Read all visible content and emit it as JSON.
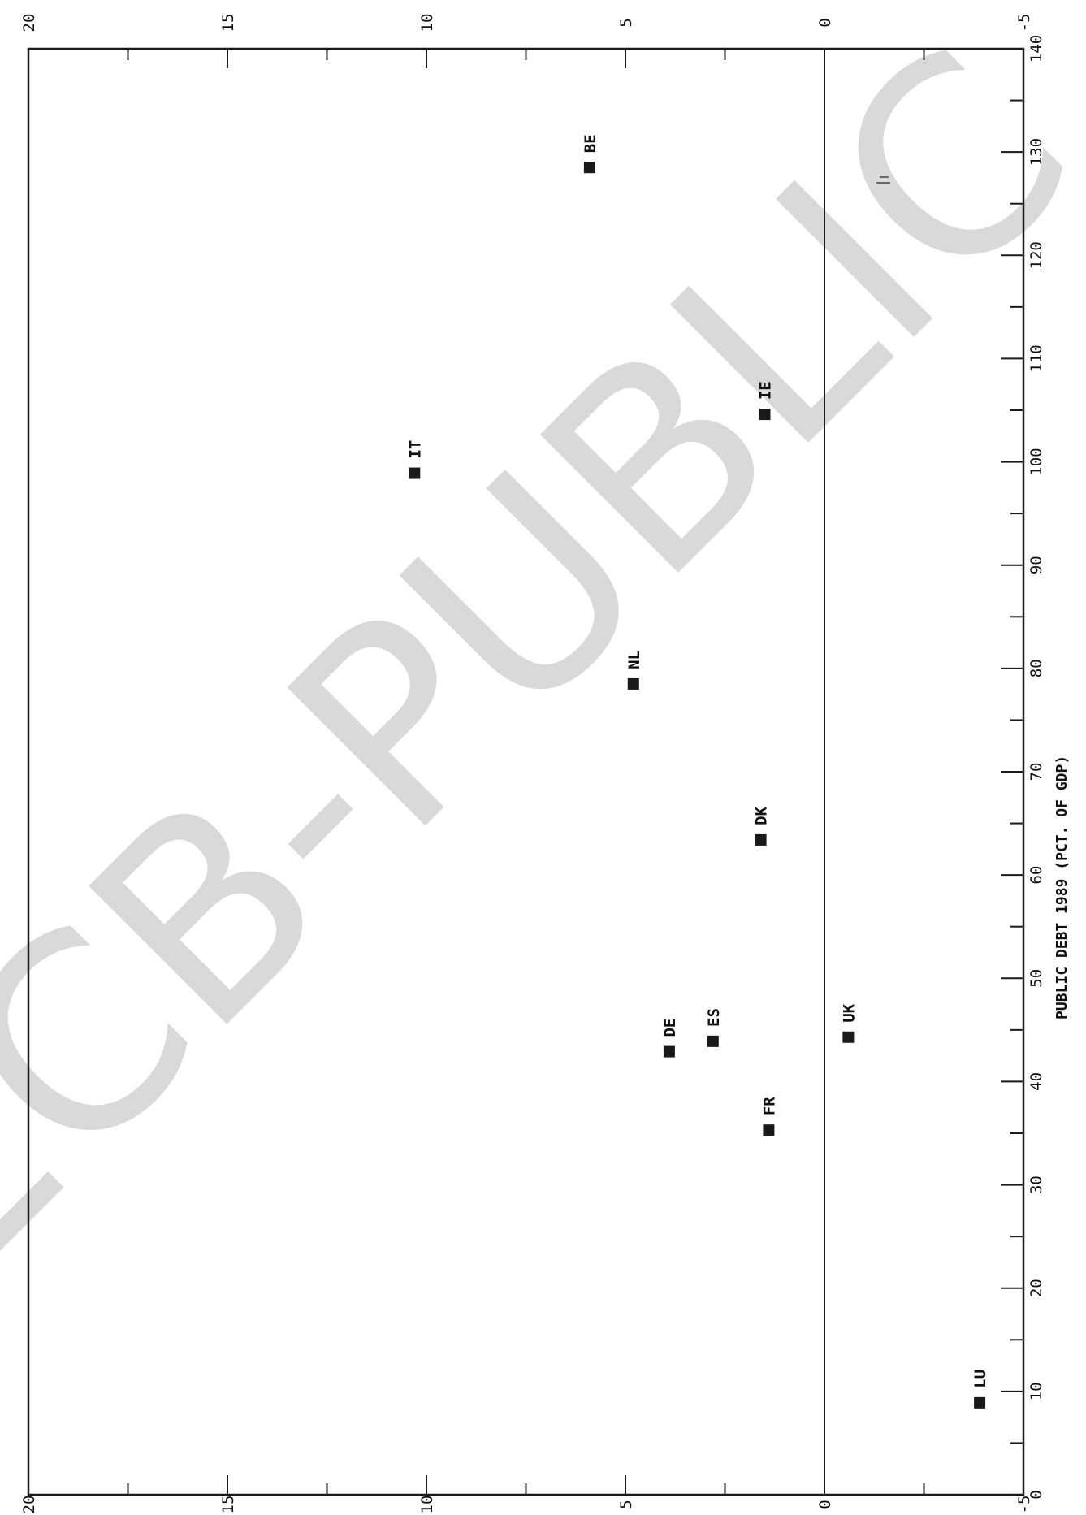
{
  "chart_data": {
    "type": "scatter",
    "orientation": "rotated-90",
    "xlabel": "PUBLIC DEBT 1989 (PCT. OF GDP)",
    "ylabel": "",
    "xlim": [
      0,
      140
    ],
    "ylim": [
      -5,
      20
    ],
    "x_ticks": [
      "0",
      "10",
      "20",
      "30",
      "40",
      "50",
      "60",
      "70",
      "80",
      "90",
      "100",
      "110",
      "120",
      "130",
      "140"
    ],
    "y_ticks": [
      "-5",
      "0",
      "5",
      "10",
      "15",
      "20"
    ],
    "reference_line_y": 0,
    "grid": false,
    "legend": "none",
    "points": [
      {
        "label": "BE",
        "x": 128.5,
        "y": 5.9
      },
      {
        "label": "IT",
        "x": 98.9,
        "y": 10.3
      },
      {
        "label": "IE",
        "x": 104.6,
        "y": 1.5
      },
      {
        "label": "NL",
        "x": 78.5,
        "y": 4.8
      },
      {
        "label": "DK",
        "x": 63.4,
        "y": 1.6
      },
      {
        "label": "DE",
        "x": 42.9,
        "y": 3.9
      },
      {
        "label": "ES",
        "x": 43.9,
        "y": 2.8
      },
      {
        "label": "UK",
        "x": 44.3,
        "y": -0.6
      },
      {
        "label": "FR",
        "x": 35.3,
        "y": 1.4
      },
      {
        "label": "LU",
        "x": 8.9,
        "y": -3.9
      }
    ]
  },
  "watermark": "ECB-PUBLIC",
  "colors": {
    "marker": "#1a1a1a",
    "axis": "#1a1a1a",
    "watermark": "#d9d9d9"
  }
}
